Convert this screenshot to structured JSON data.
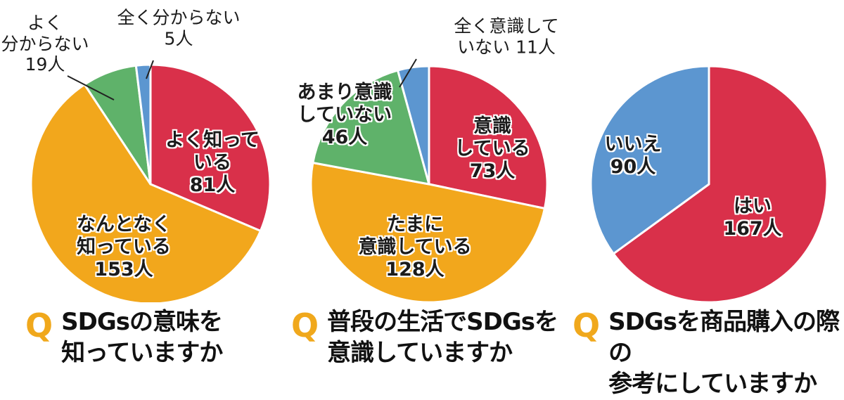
{
  "colors": {
    "red": "#d9304a",
    "orange": "#f2a71c",
    "green": "#5fb26a",
    "blue": "#5c96d0",
    "q_mark": "#f0a81c",
    "separator": "#ffffff"
  },
  "chart_data": [
    {
      "type": "pie",
      "title": "SDGsの意味を知っていますか",
      "question_mark": "Q",
      "title_lines": [
        "SDGsの意味を",
        "知っていますか"
      ],
      "start_angle_deg": 0,
      "direction": "clockwise",
      "slices": [
        {
          "label": "よく知っている",
          "label_lines": "よく知って\nいる\n81人",
          "value": 81,
          "unit": "人",
          "color": "#d9304a",
          "label_pos": "inside"
        },
        {
          "label": "なんとなく知っている",
          "label_lines": "なんとなく\n知っている\n153人",
          "value": 153,
          "unit": "人",
          "color": "#f2a71c",
          "label_pos": "inside"
        },
        {
          "label": "よく分からない",
          "label_lines": "よく\n分からない\n19人",
          "value": 19,
          "unit": "人",
          "color": "#5fb26a",
          "label_pos": "outside"
        },
        {
          "label": "全く分からない",
          "label_lines": "全く分からない\n5人",
          "value": 5,
          "unit": "人",
          "color": "#5c96d0",
          "label_pos": "outside"
        }
      ]
    },
    {
      "type": "pie",
      "title": "普段の生活でSDGsを意識していますか",
      "question_mark": "Q",
      "title_lines": [
        "普段の生活でSDGsを",
        "意識していますか"
      ],
      "start_angle_deg": 0,
      "direction": "clockwise",
      "slices": [
        {
          "label": "意識している",
          "label_lines": "意識\nしている\n73人",
          "value": 73,
          "unit": "人",
          "color": "#d9304a",
          "label_pos": "inside"
        },
        {
          "label": "たまに意識している",
          "label_lines": "たまに\n意識している\n128人",
          "value": 128,
          "unit": "人",
          "color": "#f2a71c",
          "label_pos": "inside"
        },
        {
          "label": "あまり意識していない",
          "label_lines": "あまり意識\nしていない\n46人",
          "value": 46,
          "unit": "人",
          "color": "#5fb26a",
          "label_pos": "inside"
        },
        {
          "label": "全く意識していない",
          "label_lines": "全く意識して\nいない 11人",
          "value": 11,
          "unit": "人",
          "color": "#5c96d0",
          "label_pos": "outside"
        }
      ]
    },
    {
      "type": "pie",
      "title": "SDGsを商品購入の際の参考にしていますか",
      "question_mark": "Q",
      "title_lines": [
        "SDGsを商品購入の際の",
        "参考にしていますか"
      ],
      "start_angle_deg": 0,
      "direction": "clockwise",
      "slices": [
        {
          "label": "はい",
          "label_lines": "はい\n167人",
          "value": 167,
          "unit": "人",
          "color": "#d9304a",
          "label_pos": "inside"
        },
        {
          "label": "いいえ",
          "label_lines": "いいえ\n90人",
          "value": 90,
          "unit": "人",
          "color": "#5c96d0",
          "label_pos": "inside"
        }
      ]
    }
  ]
}
